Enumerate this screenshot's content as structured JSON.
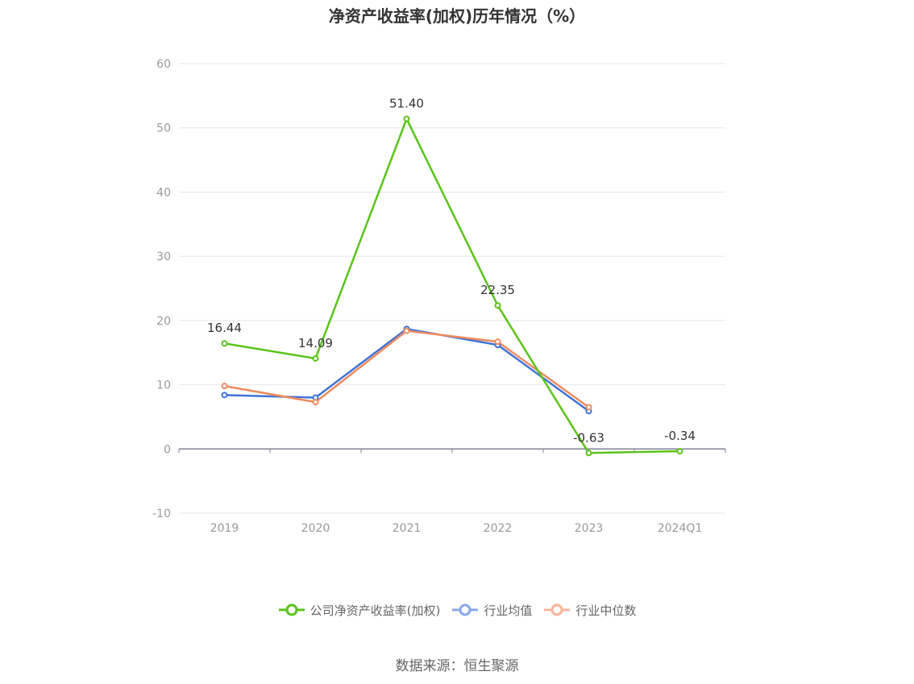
{
  "chart_data": {
    "type": "line",
    "title": "净资产收益率(加权)历年情况（%）",
    "categories": [
      "2019",
      "2020",
      "2021",
      "2022",
      "2023",
      "2024Q1"
    ],
    "ylim": [
      -10,
      60
    ],
    "yticks": [
      "60",
      "50",
      "40",
      "30",
      "20",
      "10",
      "0",
      "-10"
    ],
    "grid": true,
    "legend_position": "bottom",
    "series": [
      {
        "name": "公司净资产收益率(加权)",
        "color": "#5ac31a",
        "values": [
          16.44,
          14.09,
          51.4,
          22.35,
          -0.63,
          -0.34
        ],
        "labels": [
          "16.44",
          "14.09",
          "51.40",
          "22.35",
          "-0.63",
          "-0.34"
        ]
      },
      {
        "name": "行业均值",
        "color": "#3f74d8",
        "values": [
          8.4,
          8.0,
          18.7,
          16.2,
          5.9,
          null
        ]
      },
      {
        "name": "行业中位数",
        "color": "#f08a5d",
        "values": [
          9.8,
          7.3,
          18.4,
          16.7,
          6.5,
          null
        ]
      }
    ],
    "legend_colors": [
      "#5ac31a",
      "#88a8ee",
      "#f7b49a"
    ]
  },
  "source": "数据来源：恒生聚源"
}
